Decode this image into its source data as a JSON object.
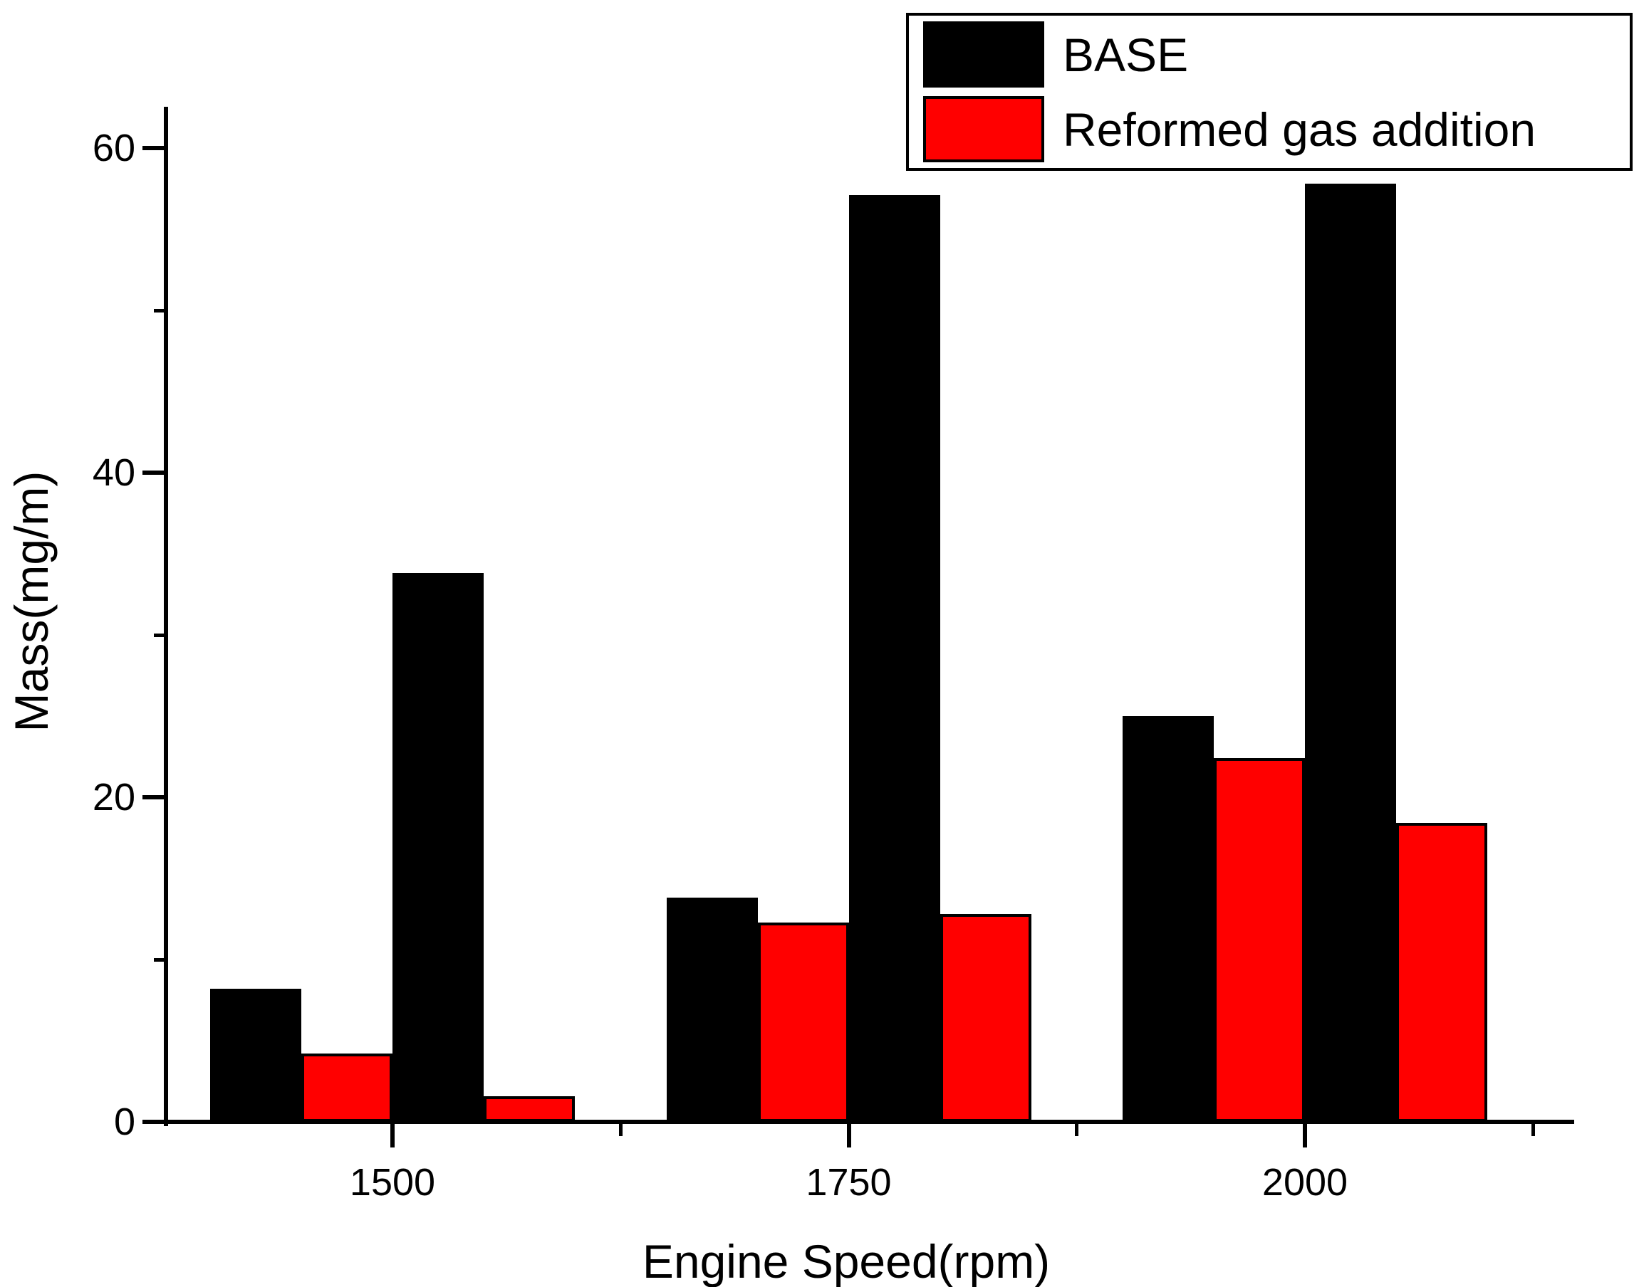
{
  "figure": {
    "ylabel": "Mass(mg/m)",
    "xlabel": "Engine Speed(rpm)",
    "colors": {
      "base": "#000000",
      "reformed": "#ff0000",
      "background": "#ffffff"
    }
  },
  "legend": {
    "items": [
      {
        "label": "BASE",
        "color": "#000000"
      },
      {
        "label": "Reformed gas addition",
        "color": "#ff0000"
      }
    ]
  },
  "chart_data": {
    "type": "bar",
    "title": "",
    "xlabel": "Engine Speed(rpm)",
    "ylabel": "Mass(mg/m)",
    "categories": [
      "1500",
      "1750",
      "2000"
    ],
    "series": [
      {
        "name": "BASE",
        "pair": 1,
        "color": "#000000",
        "values": [
          8.2,
          13.8,
          25.0
        ]
      },
      {
        "name": "Reformed gas addition",
        "pair": 1,
        "color": "#ff0000",
        "values": [
          4.2,
          12.3,
          22.4
        ]
      },
      {
        "name": "BASE",
        "pair": 2,
        "color": "#000000",
        "values": [
          33.8,
          57.1,
          57.8
        ]
      },
      {
        "name": "Reformed gas addition",
        "pair": 2,
        "color": "#ff0000",
        "values": [
          1.6,
          12.8,
          18.4
        ]
      }
    ],
    "ylim": [
      0,
      62.5
    ],
    "y_major_ticks": [
      0,
      20,
      40,
      60
    ],
    "y_minor_ticks": [
      10,
      30,
      50
    ],
    "grid": false,
    "legend_position": "top-right",
    "note": "Each engine speed group shows two adjacent BASE / Reformed gas addition bar pairs"
  }
}
